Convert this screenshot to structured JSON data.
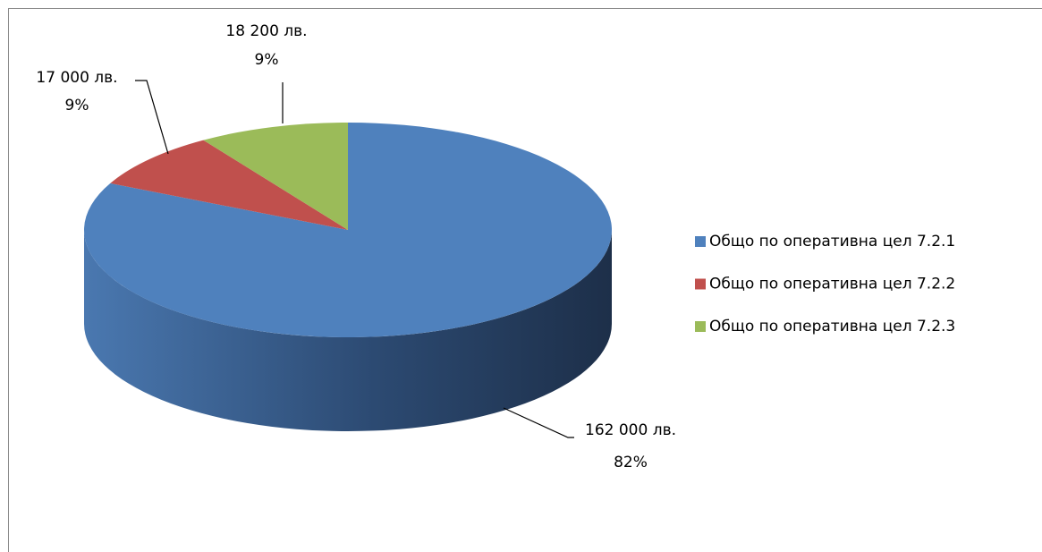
{
  "chart_data": {
    "type": "pie3d",
    "categories": [
      "Общо по оперативна цел 7.2.1",
      "Общо по оперативна цел 7.2.2",
      "Общо по оперативна цел 7.2.3"
    ],
    "values": [
      162000,
      17000,
      18200
    ],
    "value_labels": [
      "162 000 лв.",
      "17 000 лв.",
      "18 200 лв."
    ],
    "percent_labels": [
      "82%",
      "9%",
      "9%"
    ],
    "colors": [
      "#4f81bd",
      "#c0504d",
      "#9bbb59"
    ],
    "legend": "right"
  }
}
